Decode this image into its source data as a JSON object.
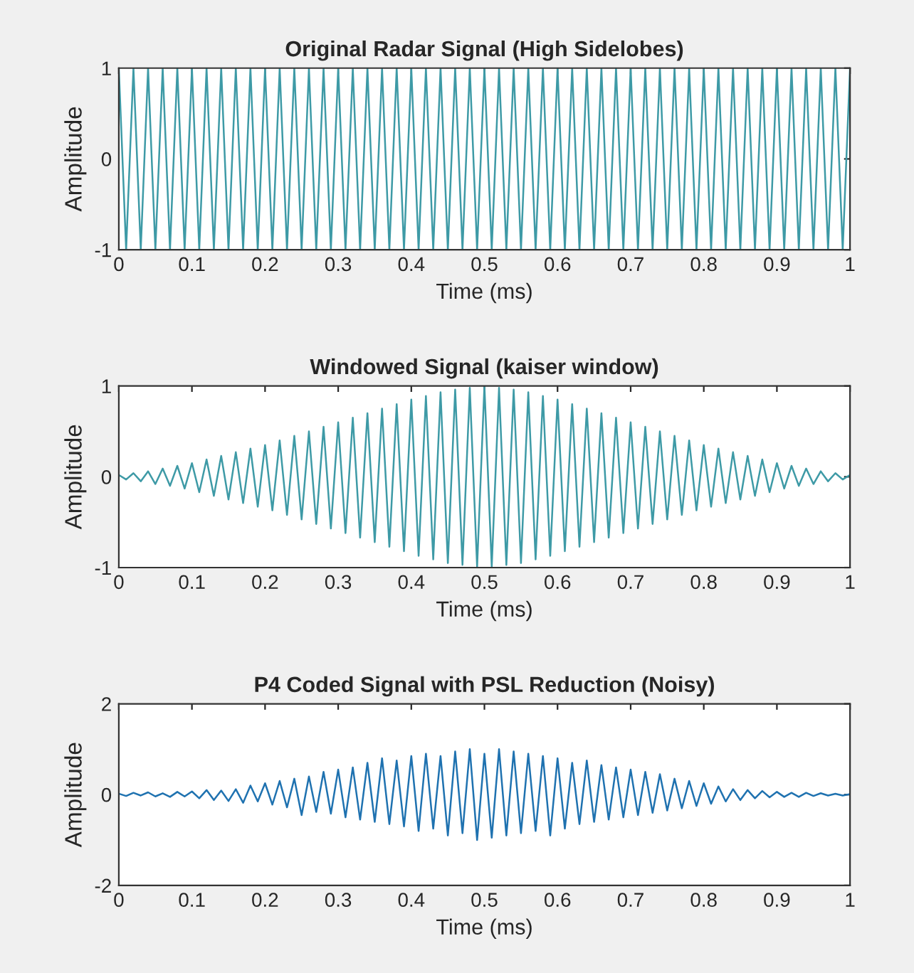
{
  "chart_data": [
    {
      "type": "line",
      "title": "Original Radar Signal (High Sidelobes)",
      "xlabel": "Time (ms)",
      "ylabel": "Amplitude",
      "xlim": [
        0,
        1
      ],
      "ylim": [
        -1,
        1
      ],
      "xticks": [
        0,
        0.1,
        0.2,
        0.3,
        0.4,
        0.5,
        0.6,
        0.7,
        0.8,
        0.9,
        1
      ],
      "yticks": [
        -1,
        0,
        1
      ],
      "x": [
        0,
        0.01,
        0.02,
        0.03,
        0.04,
        0.05,
        0.06,
        0.07,
        0.08,
        0.09,
        0.1,
        0.11,
        0.12,
        0.13,
        0.14,
        0.15,
        0.16,
        0.17,
        0.18,
        0.19,
        0.2,
        0.21,
        0.22,
        0.23,
        0.24,
        0.25,
        0.26,
        0.27,
        0.28,
        0.29,
        0.3,
        0.31,
        0.32,
        0.33,
        0.34,
        0.35,
        0.36,
        0.37,
        0.38,
        0.39,
        0.4,
        0.41,
        0.42,
        0.43,
        0.44,
        0.45,
        0.46,
        0.47,
        0.48,
        0.49,
        0.5,
        0.51,
        0.52,
        0.53,
        0.54,
        0.55,
        0.56,
        0.57,
        0.58,
        0.59,
        0.6,
        0.61,
        0.62,
        0.63,
        0.64,
        0.65,
        0.66,
        0.67,
        0.68,
        0.69,
        0.7,
        0.71,
        0.72,
        0.73,
        0.74,
        0.75,
        0.76,
        0.77,
        0.78,
        0.79,
        0.8,
        0.81,
        0.82,
        0.83,
        0.84,
        0.85,
        0.86,
        0.87,
        0.88,
        0.89,
        0.9,
        0.91,
        0.92,
        0.93,
        0.94,
        0.95,
        0.96,
        0.97,
        0.98,
        0.99,
        1
      ],
      "series": [
        {
          "color": "#3e9aa6",
          "values": [
            1,
            -1,
            1,
            -1,
            1,
            -1,
            1,
            -1,
            1,
            -1,
            1,
            -1,
            1,
            -1,
            1,
            -1,
            1,
            -1,
            1,
            -1,
            1,
            -1,
            1,
            -1,
            1,
            -1,
            1,
            -1,
            1,
            -1,
            1,
            -1,
            1,
            -1,
            1,
            -1,
            1,
            -1,
            1,
            -1,
            1,
            -1,
            1,
            -1,
            1,
            -1,
            1,
            -1,
            1,
            -1,
            1,
            -1,
            1,
            -1,
            1,
            -1,
            1,
            -1,
            1,
            -1,
            1,
            -1,
            1,
            -1,
            1,
            -1,
            1,
            -1,
            1,
            -1,
            1,
            -1,
            1,
            -1,
            1,
            -1,
            1,
            -1,
            1,
            -1,
            1,
            -1,
            1,
            -1,
            1,
            -1,
            1,
            -1,
            1,
            -1,
            1,
            -1,
            1,
            -1,
            1,
            -1,
            1,
            -1,
            1,
            -1,
            1
          ]
        }
      ]
    },
    {
      "type": "line",
      "title": "Windowed Signal (kaiser window)",
      "xlabel": "Time (ms)",
      "ylabel": "Amplitude",
      "xlim": [
        0,
        1
      ],
      "ylim": [
        -1,
        1
      ],
      "xticks": [
        0,
        0.1,
        0.2,
        0.3,
        0.4,
        0.5,
        0.6,
        0.7,
        0.8,
        0.9,
        1
      ],
      "yticks": [
        -1,
        0,
        1
      ],
      "x": [
        0,
        0.01,
        0.02,
        0.03,
        0.04,
        0.05,
        0.06,
        0.07,
        0.08,
        0.09,
        0.1,
        0.11,
        0.12,
        0.13,
        0.14,
        0.15,
        0.16,
        0.17,
        0.18,
        0.19,
        0.2,
        0.21,
        0.22,
        0.23,
        0.24,
        0.25,
        0.26,
        0.27,
        0.28,
        0.29,
        0.3,
        0.31,
        0.32,
        0.33,
        0.34,
        0.35,
        0.36,
        0.37,
        0.38,
        0.39,
        0.4,
        0.41,
        0.42,
        0.43,
        0.44,
        0.45,
        0.46,
        0.47,
        0.48,
        0.49,
        0.5,
        0.51,
        0.52,
        0.53,
        0.54,
        0.55,
        0.56,
        0.57,
        0.58,
        0.59,
        0.6,
        0.61,
        0.62,
        0.63,
        0.64,
        0.65,
        0.66,
        0.67,
        0.68,
        0.69,
        0.7,
        0.71,
        0.72,
        0.73,
        0.74,
        0.75,
        0.76,
        0.77,
        0.78,
        0.79,
        0.8,
        0.81,
        0.82,
        0.83,
        0.84,
        0.85,
        0.86,
        0.87,
        0.88,
        0.89,
        0.9,
        0.91,
        0.92,
        0.93,
        0.94,
        0.95,
        0.96,
        0.97,
        0.98,
        0.99,
        1
      ],
      "series": [
        {
          "color": "#3e9aa6",
          "values": [
            0.02,
            -0.03,
            0.04,
            -0.05,
            0.06,
            -0.08,
            0.09,
            -0.1,
            0.12,
            -0.13,
            0.15,
            -0.17,
            0.19,
            -0.21,
            0.23,
            -0.25,
            0.27,
            -0.29,
            0.31,
            -0.33,
            0.35,
            -0.37,
            0.4,
            -0.42,
            0.45,
            -0.47,
            0.5,
            -0.52,
            0.55,
            -0.57,
            0.6,
            -0.62,
            0.65,
            -0.67,
            0.7,
            -0.72,
            0.75,
            -0.77,
            0.8,
            -0.82,
            0.85,
            -0.87,
            0.89,
            -0.91,
            0.93,
            -0.95,
            0.96,
            -0.97,
            0.98,
            -0.99,
            1,
            -0.99,
            0.98,
            -0.97,
            0.96,
            -0.95,
            0.93,
            -0.91,
            0.89,
            -0.87,
            0.85,
            -0.82,
            0.8,
            -0.77,
            0.75,
            -0.72,
            0.7,
            -0.67,
            0.65,
            -0.62,
            0.6,
            -0.57,
            0.55,
            -0.52,
            0.5,
            -0.47,
            0.45,
            -0.42,
            0.4,
            -0.37,
            0.35,
            -0.33,
            0.31,
            -0.29,
            0.27,
            -0.25,
            0.23,
            -0.21,
            0.19,
            -0.17,
            0.15,
            -0.13,
            0.12,
            -0.1,
            0.09,
            -0.08,
            0.06,
            -0.05,
            0.04,
            -0.03,
            0.02
          ]
        }
      ]
    },
    {
      "type": "line",
      "title": "P4 Coded Signal with PSL Reduction (Noisy)",
      "xlabel": "Time (ms)",
      "ylabel": "Amplitude",
      "xlim": [
        0,
        1
      ],
      "ylim": [
        -2,
        2
      ],
      "xticks": [
        0,
        0.1,
        0.2,
        0.3,
        0.4,
        0.5,
        0.6,
        0.7,
        0.8,
        0.9,
        1
      ],
      "yticks": [
        -2,
        0,
        2
      ],
      "x": [
        0,
        0.01,
        0.02,
        0.03,
        0.04,
        0.05,
        0.06,
        0.07,
        0.08,
        0.09,
        0.1,
        0.11,
        0.12,
        0.13,
        0.14,
        0.15,
        0.16,
        0.17,
        0.18,
        0.19,
        0.2,
        0.21,
        0.22,
        0.23,
        0.24,
        0.25,
        0.26,
        0.27,
        0.28,
        0.29,
        0.3,
        0.31,
        0.32,
        0.33,
        0.34,
        0.35,
        0.36,
        0.37,
        0.38,
        0.39,
        0.4,
        0.41,
        0.42,
        0.43,
        0.44,
        0.45,
        0.46,
        0.47,
        0.48,
        0.49,
        0.5,
        0.51,
        0.52,
        0.53,
        0.54,
        0.55,
        0.56,
        0.57,
        0.58,
        0.59,
        0.6,
        0.61,
        0.62,
        0.63,
        0.64,
        0.65,
        0.66,
        0.67,
        0.68,
        0.69,
        0.7,
        0.71,
        0.72,
        0.73,
        0.74,
        0.75,
        0.76,
        0.77,
        0.78,
        0.79,
        0.8,
        0.81,
        0.82,
        0.83,
        0.84,
        0.85,
        0.86,
        0.87,
        0.88,
        0.89,
        0.9,
        0.91,
        0.92,
        0.93,
        0.94,
        0.95,
        0.96,
        0.97,
        0.98,
        0.99,
        1
      ],
      "series": [
        {
          "color": "#1f72b0",
          "values": [
            0.02,
            -0.03,
            0.04,
            -0.02,
            0.05,
            -0.04,
            0.03,
            -0.05,
            0.06,
            -0.04,
            0.07,
            -0.08,
            0.1,
            -0.12,
            0.09,
            -0.14,
            0.12,
            -0.18,
            0.2,
            -0.15,
            0.25,
            -0.22,
            0.3,
            -0.28,
            0.35,
            -0.45,
            0.4,
            -0.38,
            0.5,
            -0.42,
            0.55,
            -0.5,
            0.6,
            -0.55,
            0.7,
            -0.6,
            0.8,
            -0.65,
            0.75,
            -0.7,
            0.85,
            -0.8,
            0.9,
            -0.75,
            0.85,
            -0.9,
            0.95,
            -0.85,
            1.0,
            -1.0,
            0.9,
            -0.95,
            1.0,
            -0.9,
            0.95,
            -0.85,
            0.9,
            -0.8,
            0.85,
            -0.9,
            0.8,
            -0.75,
            0.7,
            -0.65,
            0.75,
            -0.6,
            0.65,
            -0.55,
            0.6,
            -0.5,
            0.55,
            -0.45,
            0.5,
            -0.4,
            0.45,
            -0.35,
            0.35,
            -0.3,
            0.3,
            -0.25,
            0.25,
            -0.2,
            0.18,
            -0.15,
            0.12,
            -0.12,
            0.1,
            -0.08,
            0.08,
            -0.06,
            0.06,
            -0.05,
            0.04,
            -0.05,
            0.04,
            -0.03,
            0.03,
            -0.02,
            0.02,
            -0.02,
            0.01
          ]
        }
      ]
    }
  ]
}
